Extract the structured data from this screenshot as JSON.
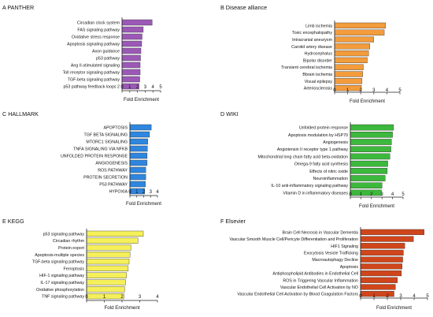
{
  "chart_data": [
    {
      "type": "bar",
      "orientation": "horizontal",
      "title": "A PANTHER",
      "xlabel": "Fold Enrichment",
      "xlim": [
        0,
        5
      ],
      "xticks": [
        0,
        1,
        2,
        3,
        4,
        5
      ],
      "bar_color": "#9b59b6",
      "categories": [
        "Circadian clock system",
        "FAS signaling pathway",
        "Oxidative stress response",
        "Apoptosis signaling pathway",
        "Axon guidance",
        "p53 pathway",
        "Ang II-stimulated signaling",
        "Toll receptor signaling pathway",
        "TGF-beta signaling pathway",
        "p53 pathway feedback loops 2"
      ],
      "values": [
        3.9,
        2.75,
        2.6,
        2.55,
        2.45,
        2.4,
        2.35,
        2.35,
        2.3,
        2.2
      ]
    },
    {
      "type": "bar",
      "orientation": "horizontal",
      "title": "B Disease alliance",
      "xlabel": "Fold Enrichment",
      "xlim": [
        0,
        5
      ],
      "xticks": [
        0,
        1,
        2,
        3,
        4,
        5
      ],
      "bar_color": "#f39c3c",
      "categories": [
        "Limb ischemia",
        "Toxic encephalopathy",
        "Intracranial aneurysm",
        "Carotid artery disease",
        "Hydrocephalus",
        "Bipolar disorder",
        "Transient cerebral ischemia",
        "Bbrain ischemia",
        "Visual epilepsy",
        "Arteriosclerosis"
      ],
      "values": [
        3.9,
        3.8,
        3.0,
        2.7,
        2.6,
        2.5,
        2.2,
        2.15,
        2.1,
        2.05
      ]
    },
    {
      "type": "bar",
      "orientation": "horizontal",
      "title": "C HALLMARK",
      "xlabel": "Fold Enrichment",
      "xlim": [
        0,
        4
      ],
      "xticks": [
        0,
        1,
        2,
        3,
        4
      ],
      "bar_color": "#2e86de",
      "categories": [
        "APOPTOSIS",
        "TGF BETA SIGNALING",
        "MTORC1 SIGNALING",
        "TNFA SIGNALING VIA NFKB",
        "UNFOLDED PROTEIN RESPONSE",
        "ANGIOGENESIS",
        "ROS PATHWAY",
        "PROTEIN SECRETION",
        "P53 PATHWAY",
        "HYPOXIA"
      ],
      "values": [
        3.1,
        2.85,
        2.6,
        2.55,
        2.5,
        2.5,
        2.3,
        2.3,
        2.25,
        2.15
      ]
    },
    {
      "type": "bar",
      "orientation": "horizontal",
      "title": "D WIKI",
      "xlabel": "Fold Enrichment",
      "xlim": [
        0,
        5
      ],
      "xticks": [
        0,
        1,
        2,
        3,
        4,
        5
      ],
      "bar_color": "#3cb83c",
      "categories": [
        "Unfolded protein response",
        "Apoptosis modulation by HSP70",
        "Angiogenesis",
        "Angiotensin II receptor type 1 pathway",
        "Mitochondrial long chain fatty acid beta-oxidation",
        "Omega-9 fatty acid synthesis",
        "Effects of nitric oxide",
        "Neuroinflammation",
        "IL-10 anti-inflammatory signaling pathway",
        "Vitamin D in inflammatory diseases"
      ],
      "values": [
        4.1,
        4.0,
        3.9,
        3.85,
        3.75,
        3.55,
        3.5,
        3.3,
        3.0,
        2.95
      ]
    },
    {
      "type": "bar",
      "orientation": "horizontal",
      "title": "E KEGG",
      "xlabel": "Fold Enrichment",
      "xlim": [
        0,
        4
      ],
      "xticks": [
        0,
        1,
        2,
        3,
        4
      ],
      "bar_color": "#f5f05a",
      "categories": [
        "p53 signaling pathway",
        "Circadian rhythm",
        "Protein export",
        "Apoptosis-multiple species",
        "TGF-beta signaling pathway",
        "Ferroptosis",
        "HIF-1 signaling pathway",
        "IL-17 signaling pathway",
        "Oxidative phosphorylation",
        "TNF signaling pathway"
      ],
      "values": [
        3.2,
        2.9,
        2.5,
        2.45,
        2.4,
        2.35,
        2.25,
        2.2,
        2.15,
        2.1
      ]
    },
    {
      "type": "bar",
      "orientation": "horizontal",
      "title": "F Elsevier",
      "xlabel": "Fold Enrichment",
      "xlim": [
        0,
        5
      ],
      "xticks": [
        0,
        1,
        2,
        3,
        4,
        5
      ],
      "bar_color": "#d0451b",
      "categories": [
        "Brain Cell Necrosis in Vascular Dementia",
        "Vascular Smooth Muscle Cell/Pericyte Differentiation and Proliferation",
        "HIF1 Signaling",
        "Exocytosis Vesicle Trafficking",
        "Macroautophagy Decline",
        "Apoptosis",
        "Antiphospholipid Antibodies in Endothelial Cell",
        "ROS in Triggering Vascular Inflammation",
        "Vascular Endothelial Cell Activation by NO",
        "Vascular Endothelial Cell Activation by Blood Coagulation Factors"
      ],
      "values": [
        4.75,
        3.95,
        3.3,
        3.2,
        3.15,
        3.1,
        3.05,
        2.75,
        2.6,
        2.5
      ]
    }
  ]
}
